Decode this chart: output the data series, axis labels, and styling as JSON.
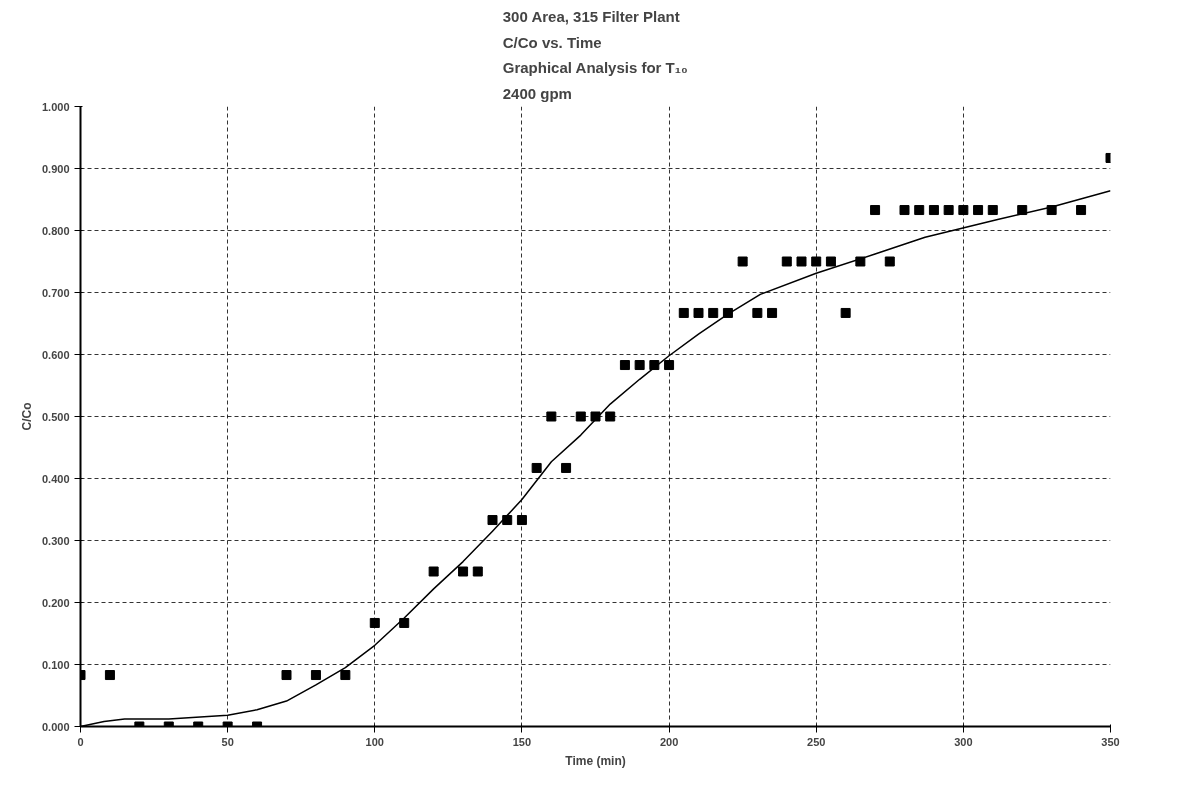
{
  "chart_data": {
    "type": "scatter",
    "title": "300 Area, 315 Filter Plant\nC/Co vs. Time\nGraphical Analysis for T₁₀\n2400 gpm",
    "xlabel": "Time (min)",
    "ylabel": "C/Co",
    "xlim": [
      0,
      350
    ],
    "xticks": [
      0,
      50,
      100,
      150,
      200,
      250,
      300,
      350
    ],
    "ylim": [
      0,
      1
    ],
    "yticks": [
      {
        "value": 0,
        "label": "0.000"
      },
      {
        "value": 0.1,
        "label": "0.100"
      },
      {
        "value": 0.2,
        "label": "0.200"
      },
      {
        "value": 0.3,
        "label": "0.300"
      },
      {
        "value": 0.4,
        "label": "0.400"
      },
      {
        "value": 0.5,
        "label": "0.500"
      },
      {
        "value": 0.6,
        "label": "0.600"
      },
      {
        "value": 0.7,
        "label": "0.700"
      },
      {
        "value": 0.8,
        "label": "0.800"
      },
      {
        "value": 0.9,
        "label": "0.900"
      },
      {
        "value": 1.0,
        "label": "1.000"
      }
    ],
    "grid": true,
    "series": [
      {
        "color": "#000000",
        "marker": "square",
        "x": [
          0,
          10,
          20,
          30,
          40,
          50,
          60,
          70,
          80,
          90,
          100,
          110,
          120,
          130,
          135,
          140,
          145,
          150,
          155,
          160,
          165,
          170,
          175,
          180,
          185,
          190,
          195,
          200,
          205,
          210,
          215,
          220,
          225,
          230,
          235,
          240,
          245,
          250,
          255,
          260,
          265,
          270,
          275,
          280,
          285,
          290,
          295,
          300,
          305,
          310,
          320,
          330,
          340,
          350
        ],
        "values": [
          0.083,
          0.083,
          0,
          0,
          0,
          0,
          0,
          0.083,
          0.083,
          0.083,
          0.167,
          0.167,
          0.25,
          0.25,
          0.25,
          0.333,
          0.333,
          0.333,
          0.417,
          0.5,
          0.417,
          0.5,
          0.5,
          0.5,
          0.583,
          0.583,
          0.583,
          0.583,
          0.667,
          0.667,
          0.667,
          0.667,
          0.75,
          0.667,
          0.667,
          0.75,
          0.75,
          0.75,
          0.75,
          0.667,
          0.75,
          0.833,
          0.75,
          0.833,
          0.833,
          0.833,
          0.833,
          0.833,
          0.833,
          0.833,
          0.833,
          0.833,
          0.833,
          0.917
        ]
      },
      {
        "type": "line",
        "color": "#000000",
        "line_style": "solid",
        "x": [
          0,
          8,
          15,
          30,
          50,
          60,
          70,
          80,
          90,
          100,
          110,
          120,
          130,
          140,
          150,
          160,
          170,
          180,
          190,
          200,
          210,
          220,
          231,
          250,
          270,
          287,
          312,
          330,
          350
        ],
        "values": [
          0,
          0.008,
          0.012,
          0.012,
          0.018,
          0.027,
          0.041,
          0.067,
          0.095,
          0.131,
          0.175,
          0.222,
          0.266,
          0.315,
          0.366,
          0.427,
          0.47,
          0.52,
          0.56,
          0.598,
          0.633,
          0.665,
          0.697,
          0.731,
          0.762,
          0.789,
          0.818,
          0.838,
          0.864
        ]
      }
    ]
  }
}
